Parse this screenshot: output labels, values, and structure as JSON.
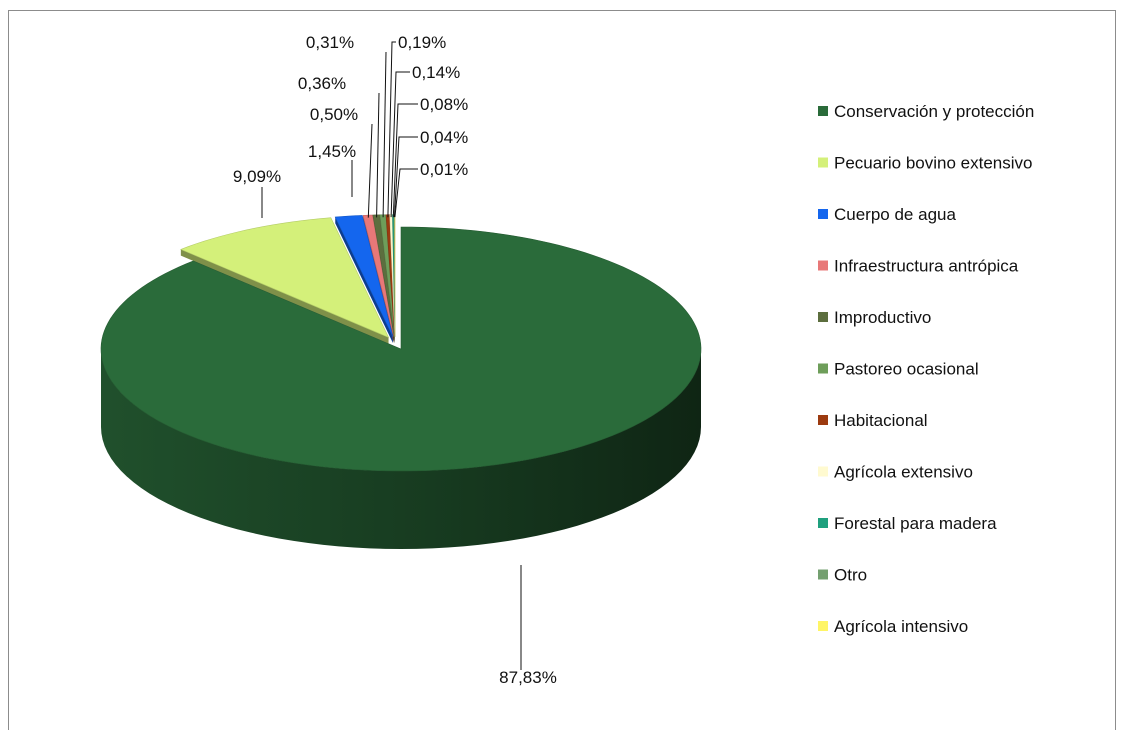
{
  "chart_data": {
    "type": "pie",
    "title": "",
    "categories": [
      "Conservación y protección",
      "Pecuario bovino extensivo",
      "Cuerpo de agua",
      "Infraestructura antrópica",
      "Improductivo",
      "Pastoreo ocasional",
      "Habitacional",
      "Agrícola extensivo",
      "Forestal para madera",
      "Otro",
      "Agrícola intensivo"
    ],
    "values": [
      87.83,
      9.09,
      1.45,
      0.5,
      0.36,
      0.31,
      0.19,
      0.14,
      0.08,
      0.04,
      0.01
    ],
    "data_labels": [
      "87,83%",
      "9,09%",
      "1,45%",
      "0,50%",
      "0,36%",
      "0,31%",
      "0,19%",
      "0,14%",
      "0,08%",
      "0,04%",
      "0,01%"
    ],
    "colors": [
      "#2a6b3a",
      "#d4f07a",
      "#1466ee",
      "#e87878",
      "#5c6e3e",
      "#6e9e5a",
      "#9c3a10",
      "#fffad0",
      "#1fa07e",
      "#74a070",
      "#fff566"
    ],
    "legend_position": "right",
    "style": "3d-exploded"
  }
}
